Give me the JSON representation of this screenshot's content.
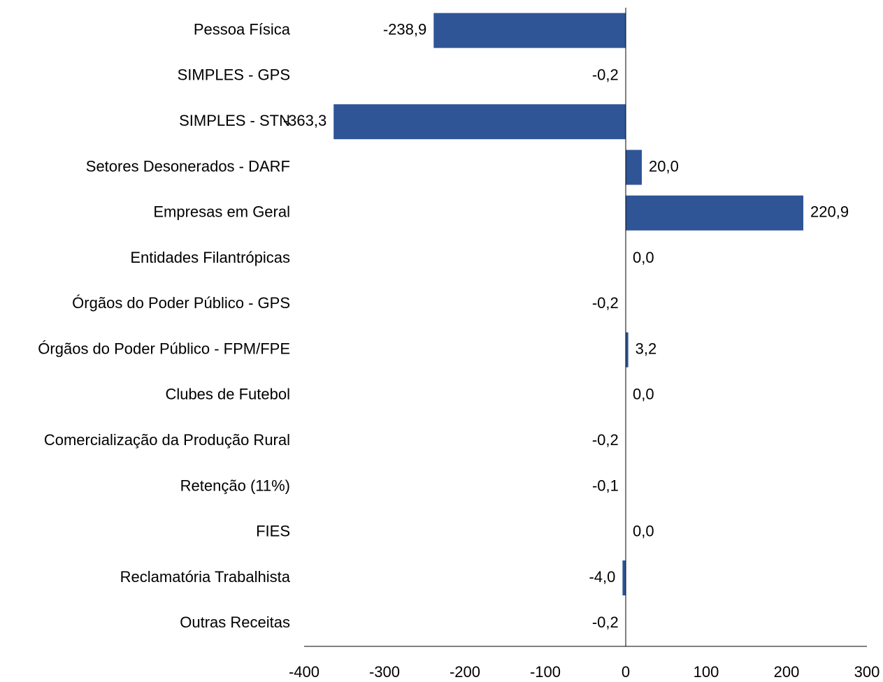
{
  "chart_data": {
    "type": "barh",
    "categories": [
      "Pessoa Física",
      "SIMPLES - GPS",
      "SIMPLES - STN",
      "Setores Desonerados - DARF",
      "Empresas em Geral",
      "Entidades Filantrópicas",
      "Órgãos do Poder Público - GPS",
      "Órgãos do Poder Público - FPM/FPE",
      "Clubes de Futebol",
      "Comercialização da Produção Rural",
      "Retenção (11%)",
      "FIES",
      "Reclamatória Trabalhista",
      "Outras Receitas"
    ],
    "values": [
      -238.9,
      -0.2,
      -363.3,
      20.0,
      220.9,
      0.0,
      -0.2,
      3.2,
      0.0,
      -0.2,
      -0.1,
      0.0,
      -4.0,
      -0.2
    ],
    "value_labels": [
      "-238,9",
      "-0,2",
      "-363,3",
      "20,0",
      "220,9",
      "0,0",
      "-0,2",
      "3,2",
      "0,0",
      "-0,2",
      "-0,1",
      "0,0",
      "-4,0",
      "-0,2"
    ],
    "color": "#2f5597",
    "xlim": [
      -400,
      300
    ],
    "xticks": [
      -400,
      -300,
      -200,
      -100,
      0,
      100,
      200,
      300
    ],
    "grid": false
  }
}
